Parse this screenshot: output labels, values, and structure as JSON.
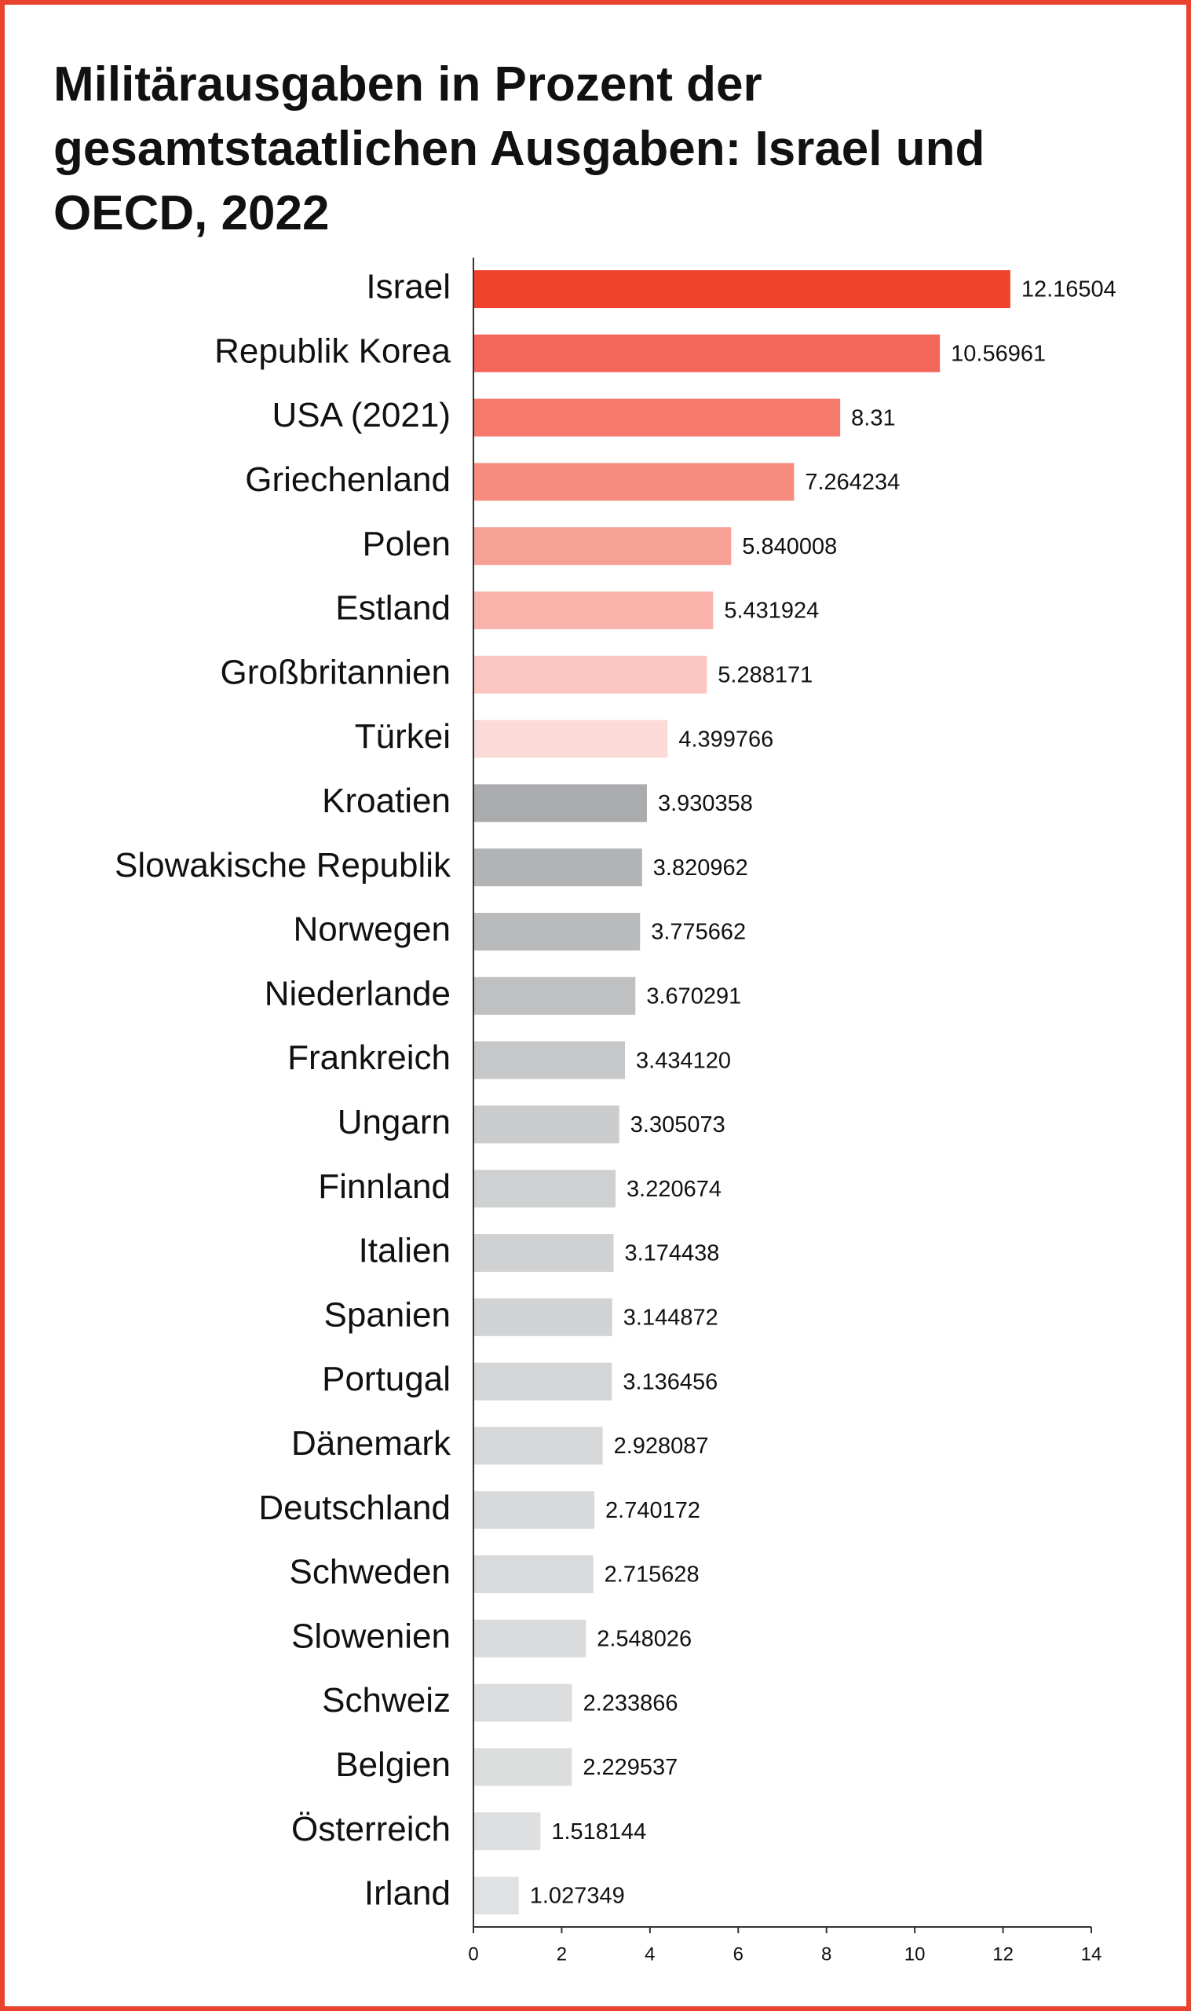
{
  "chart_data": {
    "type": "barh",
    "title": [
      "Militärausgaben in Prozent der",
      "gesamtstaatlichen Ausgaben: Israel und",
      "OECD, 2022"
    ],
    "categories": [
      "Israel",
      "Republik Korea",
      "USA (2021)",
      "Griechenland",
      "Polen",
      "Estland",
      "Großbritannien",
      "Türkei",
      "Kroatien",
      "Slowakische Republik",
      "Norwegen",
      "Niederlande",
      "Frankreich",
      "Ungarn",
      "Finnland",
      "Italien",
      "Spanien",
      "Portugal",
      "Dänemark",
      "Deutschland",
      "Schweden",
      "Slowenien",
      "Schweiz",
      "Belgien",
      "Österreich",
      "Irland"
    ],
    "values": [
      12.16504,
      10.56961,
      8.31,
      7.264234,
      5.840008,
      5.431924,
      5.288171,
      4.399766,
      3.930358,
      3.820962,
      3.775662,
      3.670291,
      3.43412,
      3.305073,
      3.220674,
      3.174438,
      3.144872,
      3.136456,
      2.928087,
      2.740172,
      2.715628,
      2.548026,
      2.233866,
      2.229537,
      1.518144,
      1.027349
    ],
    "value_labels": [
      "12.16504",
      "10.56961",
      "8.31",
      "7.264234",
      "5.840008",
      "5.431924",
      "5.288171",
      "4.399766",
      "3.930358",
      "3.820962",
      "3.775662",
      "3.670291",
      "3.434120",
      "3.305073",
      "3.220674",
      "3.174438",
      "3.144872",
      "3.136456",
      "2.928087",
      "2.740172",
      "2.715628",
      "2.548026",
      "2.233866",
      "2.229537",
      "1.518144",
      "1.027349"
    ],
    "colors": [
      "#f0412b",
      "#f4655a",
      "#f57a6c",
      "#f68b7e",
      "#f7a096",
      "#f9b3ab",
      "#fbc5c0",
      "#fcdad7",
      "#aaabad",
      "#b2b3b5",
      "#b9babb",
      "#bfc0c1",
      "#c6c7c8",
      "#cbcccd",
      "#cfd0d1",
      "#d0d1d2",
      "#d2d3d4",
      "#d4d5d6",
      "#d7d8d9",
      "#d8d9da",
      "#d9dadb",
      "#dadbdc",
      "#dbdcdd",
      "#dcdddd",
      "#dedfe0",
      "#e0e1e2"
    ],
    "xlim": [
      0,
      14
    ],
    "xticks": [
      0,
      2,
      4,
      6,
      8,
      10,
      12,
      14
    ]
  }
}
